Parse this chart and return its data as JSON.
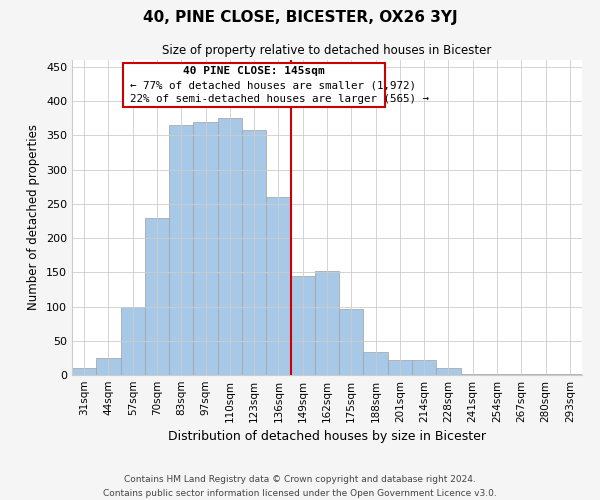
{
  "title": "40, PINE CLOSE, BICESTER, OX26 3YJ",
  "subtitle": "Size of property relative to detached houses in Bicester",
  "xlabel": "Distribution of detached houses by size in Bicester",
  "ylabel": "Number of detached properties",
  "bar_labels": [
    "31sqm",
    "44sqm",
    "57sqm",
    "70sqm",
    "83sqm",
    "97sqm",
    "110sqm",
    "123sqm",
    "136sqm",
    "149sqm",
    "162sqm",
    "175sqm",
    "188sqm",
    "201sqm",
    "214sqm",
    "228sqm",
    "241sqm",
    "254sqm",
    "267sqm",
    "280sqm",
    "293sqm"
  ],
  "bar_values": [
    10,
    25,
    100,
    230,
    365,
    370,
    375,
    358,
    260,
    145,
    152,
    96,
    34,
    22,
    22,
    10,
    2,
    2,
    1,
    1,
    1
  ],
  "bar_color": "#a8c8e8",
  "bar_edge_color": "#a0a0a0",
  "vline_x_idx": 8.5,
  "vline_color": "#cc0000",
  "annotation_title": "40 PINE CLOSE: 145sqm",
  "annotation_line1": "← 77% of detached houses are smaller (1,972)",
  "annotation_line2": "22% of semi-detached houses are larger (565) →",
  "ann_box_color": "#cc0000",
  "ylim": [
    0,
    460
  ],
  "yticks": [
    0,
    50,
    100,
    150,
    200,
    250,
    300,
    350,
    400,
    450
  ],
  "footer1": "Contains HM Land Registry data © Crown copyright and database right 2024.",
  "footer2": "Contains public sector information licensed under the Open Government Licence v3.0.",
  "bg_color": "#f5f5f5",
  "plot_bg_color": "#ffffff",
  "grid_color": "#cccccc"
}
